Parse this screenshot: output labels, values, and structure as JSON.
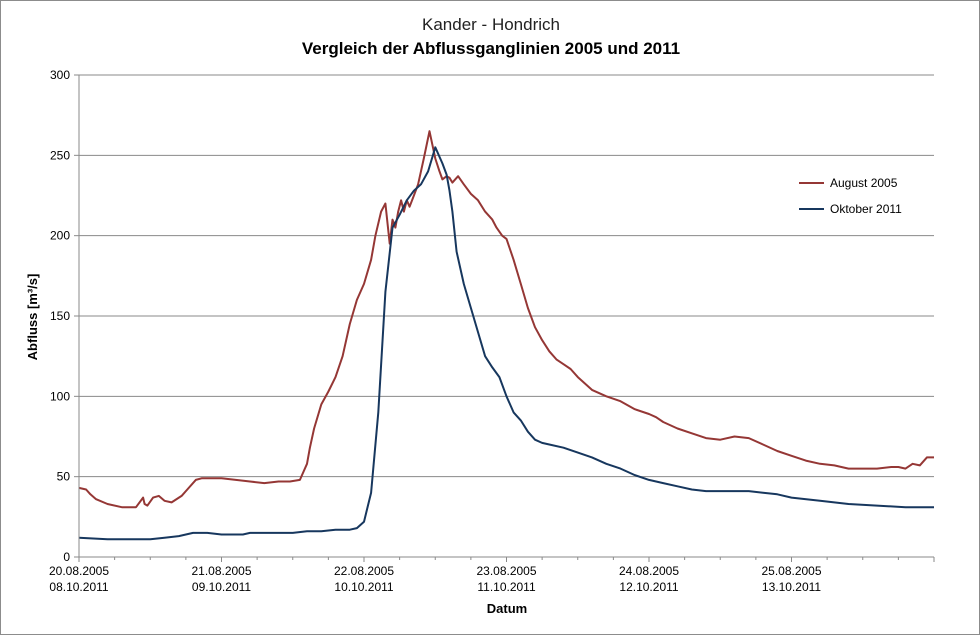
{
  "chart_data": {
    "type": "line",
    "title": "Kander - Hondrich",
    "subtitle": "Vergleich der Abflussganglinien 2005 und 2011",
    "xlabel": "Datum",
    "ylabel": "Abfluss [m³/s]",
    "ylim": [
      0,
      300
    ],
    "yticks": [
      0,
      50,
      100,
      150,
      200,
      250,
      300
    ],
    "xlim": [
      0,
      6
    ],
    "x_unit": "days after 20.08.2005 00:00 / 08.10.2011 00:00",
    "xticks": [
      {
        "x": 0,
        "label1": "20.08.2005",
        "label2": "08.10.2011"
      },
      {
        "x": 1,
        "label1": "21.08.2005",
        "label2": "09.10.2011"
      },
      {
        "x": 2,
        "label1": "22.08.2005",
        "label2": "10.10.2011"
      },
      {
        "x": 3,
        "label1": "23.08.2005",
        "label2": "11.10.2011"
      },
      {
        "x": 4,
        "label1": "24.08.2005",
        "label2": "12.10.2011"
      },
      {
        "x": 5,
        "label1": "25.08.2005",
        "label2": "13.10.2011"
      }
    ],
    "grid": true,
    "legend_position": "right",
    "series": [
      {
        "name": "August 2005",
        "color": "#953735",
        "x": [
          0.0,
          0.05,
          0.08,
          0.12,
          0.2,
          0.3,
          0.4,
          0.45,
          0.46,
          0.48,
          0.52,
          0.56,
          0.6,
          0.65,
          0.72,
          0.76,
          0.82,
          0.86,
          0.92,
          1.0,
          1.1,
          1.2,
          1.3,
          1.4,
          1.48,
          1.55,
          1.6,
          1.62,
          1.65,
          1.7,
          1.75,
          1.8,
          1.85,
          1.9,
          1.95,
          2.0,
          2.05,
          2.08,
          2.12,
          2.15,
          2.18,
          2.2,
          2.22,
          2.24,
          2.26,
          2.28,
          2.3,
          2.32,
          2.35,
          2.38,
          2.42,
          2.46,
          2.5,
          2.53,
          2.55,
          2.58,
          2.6,
          2.62,
          2.66,
          2.7,
          2.75,
          2.8,
          2.85,
          2.9,
          2.93,
          2.97,
          3.0,
          3.05,
          3.1,
          3.15,
          3.2,
          3.25,
          3.3,
          3.35,
          3.4,
          3.45,
          3.5,
          3.6,
          3.7,
          3.8,
          3.9,
          4.0,
          4.05,
          4.1,
          4.2,
          4.3,
          4.4,
          4.5,
          4.6,
          4.7,
          4.8,
          4.9,
          5.0,
          5.1,
          5.2,
          5.3,
          5.4,
          5.5,
          5.6,
          5.7,
          5.75,
          5.8,
          5.85,
          5.9,
          5.95,
          6.0
        ],
        "values": [
          43,
          42,
          39,
          36,
          33,
          31,
          31,
          37,
          33,
          32,
          37,
          38,
          35,
          34,
          38,
          42,
          48,
          49,
          49,
          49,
          48,
          47,
          46,
          47,
          47,
          48,
          58,
          68,
          80,
          95,
          103,
          112,
          125,
          145,
          160,
          170,
          185,
          200,
          215,
          220,
          195,
          210,
          205,
          215,
          222,
          215,
          222,
          218,
          225,
          232,
          248,
          265,
          248,
          240,
          235,
          237,
          236,
          233,
          237,
          232,
          226,
          222,
          215,
          210,
          205,
          200,
          198,
          185,
          170,
          155,
          143,
          135,
          128,
          123,
          120,
          117,
          112,
          104,
          100,
          97,
          92,
          89,
          87,
          84,
          80,
          77,
          74,
          73,
          75,
          74,
          70,
          66,
          63,
          60,
          58,
          57,
          55,
          55,
          55,
          56,
          56,
          55,
          58,
          57,
          62,
          62
        ]
      },
      {
        "name": "Oktober 2011",
        "color": "#17375e",
        "x": [
          0.0,
          0.2,
          0.4,
          0.5,
          0.6,
          0.7,
          0.75,
          0.8,
          0.9,
          1.0,
          1.1,
          1.15,
          1.2,
          1.3,
          1.4,
          1.5,
          1.6,
          1.7,
          1.8,
          1.9,
          1.95,
          2.0,
          2.05,
          2.1,
          2.15,
          2.2,
          2.25,
          2.3,
          2.35,
          2.4,
          2.45,
          2.5,
          2.55,
          2.58,
          2.6,
          2.62,
          2.65,
          2.7,
          2.75,
          2.8,
          2.85,
          2.9,
          2.95,
          3.0,
          3.05,
          3.1,
          3.15,
          3.2,
          3.25,
          3.3,
          3.4,
          3.5,
          3.6,
          3.7,
          3.8,
          3.9,
          4.0,
          4.1,
          4.2,
          4.3,
          4.4,
          4.5,
          4.6,
          4.7,
          4.8,
          4.9,
          5.0,
          5.2,
          5.4,
          5.6,
          5.8,
          6.0
        ],
        "values": [
          12,
          11,
          11,
          11,
          12,
          13,
          14,
          15,
          15,
          14,
          14,
          14,
          15,
          15,
          15,
          15,
          16,
          16,
          17,
          17,
          18,
          22,
          40,
          90,
          165,
          205,
          213,
          222,
          228,
          232,
          240,
          255,
          245,
          238,
          228,
          215,
          190,
          170,
          155,
          140,
          125,
          118,
          112,
          100,
          90,
          85,
          78,
          73,
          71,
          70,
          68,
          65,
          62,
          58,
          55,
          51,
          48,
          46,
          44,
          42,
          41,
          41,
          41,
          41,
          40,
          39,
          37,
          35,
          33,
          32,
          31,
          31
        ]
      }
    ]
  }
}
